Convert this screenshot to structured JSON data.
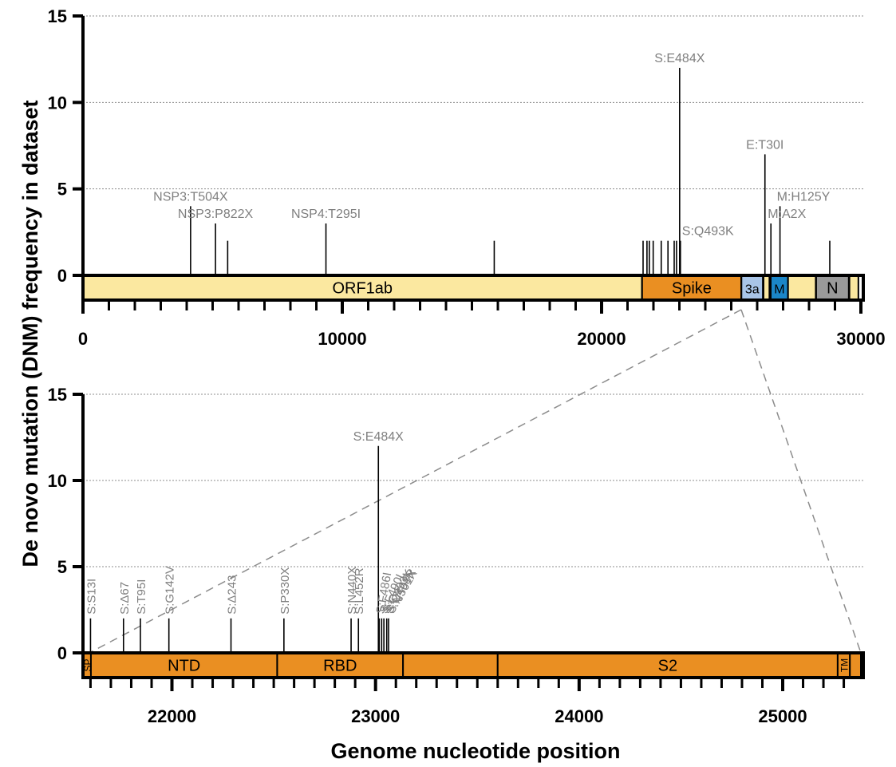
{
  "colors": {
    "orf1ab": "#fbe8a0",
    "spike": "#ea8f22",
    "orf3a": "#a9c5e8",
    "membrane": "#1b86c8",
    "nucleocapsid": "#9a9a9a",
    "other_gene": "#fbe8a0",
    "label_gray": "#7f7f7f",
    "grid": "#8c8c8c",
    "axis": "#000000"
  },
  "chart_data": {
    "y_axis_title": "De novo mutation (DNM) frequency in dataset",
    "x_axis_title": "Genome nucleotide position",
    "panels": [
      {
        "type": "bar",
        "name": "genome",
        "xlim": [
          0,
          30000
        ],
        "ylim": [
          0,
          15
        ],
        "yticks": [
          0,
          5,
          10,
          15
        ],
        "xticks": [
          0,
          10000,
          20000,
          30000
        ],
        "xtick_labels": [
          "0",
          "10000",
          "20000",
          "30000"
        ],
        "minor_xtick_step": 1000,
        "grid": "horizontal",
        "genes": [
          {
            "name": "ORF1ab",
            "start": 0,
            "end": 21555,
            "color_key": "orf1ab"
          },
          {
            "name": "Spike",
            "start": 21563,
            "end": 25384,
            "color_key": "spike"
          },
          {
            "name": "3a",
            "start": 25393,
            "end": 26220,
            "color_key": "orf3a"
          },
          {
            "name": "",
            "start": 26245,
            "end": 26472,
            "color_key": "other_gene"
          },
          {
            "name": "M",
            "start": 26523,
            "end": 27191,
            "color_key": "membrane"
          },
          {
            "name": "",
            "start": 27191,
            "end": 28259,
            "color_key": "other_gene"
          },
          {
            "name": "N",
            "start": 28274,
            "end": 29533,
            "color_key": "nucleocapsid"
          },
          {
            "name": "",
            "start": 29558,
            "end": 29903,
            "color_key": "other_gene"
          }
        ],
        "mutations": [
          {
            "x": 4150,
            "y": 4,
            "label": "NSP3:T504X"
          },
          {
            "x": 5110,
            "y": 3,
            "label": "NSP3:P822X"
          },
          {
            "x": 5580,
            "y": 2,
            "label": ""
          },
          {
            "x": 9370,
            "y": 3,
            "label": "NSP4:T295I"
          },
          {
            "x": 15860,
            "y": 2,
            "label": ""
          },
          {
            "x": 21600,
            "y": 2,
            "label": ""
          },
          {
            "x": 21750,
            "y": 2,
            "label": ""
          },
          {
            "x": 21840,
            "y": 2,
            "label": ""
          },
          {
            "x": 21990,
            "y": 2,
            "label": ""
          },
          {
            "x": 22300,
            "y": 2,
            "label": ""
          },
          {
            "x": 22560,
            "y": 2,
            "label": ""
          },
          {
            "x": 22800,
            "y": 2,
            "label": ""
          },
          {
            "x": 22890,
            "y": 2,
            "label": ""
          },
          {
            "x": 23010,
            "y": 12,
            "label": "S:E484X"
          },
          {
            "x": 23040,
            "y": 2,
            "label": "S:Q493K"
          },
          {
            "x": 26300,
            "y": 7,
            "label": "E:T30I"
          },
          {
            "x": 26530,
            "y": 3,
            "label": "M:A2X"
          },
          {
            "x": 26880,
            "y": 4,
            "label": "M:H125Y"
          },
          {
            "x": 28800,
            "y": 2,
            "label": ""
          }
        ]
      },
      {
        "type": "bar",
        "name": "spike",
        "xlim": [
          21563,
          25384
        ],
        "ylim": [
          0,
          15
        ],
        "yticks": [
          0,
          5,
          10,
          15
        ],
        "xticks": [
          22000,
          23000,
          24000,
          25000
        ],
        "xtick_labels": [
          "22000",
          "23000",
          "24000",
          "25000"
        ],
        "minor_xtick_step": 100,
        "grid": "horizontal",
        "domains": [
          {
            "name": "SP",
            "start": 21563,
            "end": 21602,
            "vertical": true
          },
          {
            "name": "NTD",
            "start": 21602,
            "end": 22517,
            "vertical": false
          },
          {
            "name": "RBD",
            "start": 22517,
            "end": 23135,
            "vertical": false
          },
          {
            "name": "",
            "start": 23135,
            "end": 23600,
            "vertical": false
          },
          {
            "name": "S2",
            "start": 23600,
            "end": 25270,
            "vertical": false
          },
          {
            "name": "TM",
            "start": 25270,
            "end": 25330,
            "vertical": true
          },
          {
            "name": "",
            "start": 25330,
            "end": 25384,
            "vertical": false
          }
        ],
        "mutations": [
          {
            "x": 21600,
            "y": 2,
            "label": "S:S13I",
            "angle": -90
          },
          {
            "x": 21762,
            "y": 2,
            "label": "S:Δ67",
            "angle": -90
          },
          {
            "x": 21845,
            "y": 2,
            "label": "S:T95I",
            "angle": -90
          },
          {
            "x": 21985,
            "y": 2,
            "label": "S:G142V",
            "angle": -90
          },
          {
            "x": 22290,
            "y": 2,
            "label": "S:Δ243",
            "angle": -90
          },
          {
            "x": 22550,
            "y": 2,
            "label": "S:P330X",
            "angle": -90
          },
          {
            "x": 22880,
            "y": 2,
            "label": "S:N440X",
            "angle": -90
          },
          {
            "x": 22916,
            "y": 2,
            "label": "S:L452R",
            "angle": -90
          },
          {
            "x": 23014,
            "y": 12,
            "label": "S:E484X",
            "angle": 0
          },
          {
            "x": 23018,
            "y": 2,
            "label": "S:F486I",
            "angle": -80
          },
          {
            "x": 23030,
            "y": 2,
            "label": "S:F490L",
            "angle": -65
          },
          {
            "x": 23041,
            "y": 2,
            "label": "S:Q493K",
            "angle": -60
          },
          {
            "x": 23055,
            "y": 2,
            "label": "S:Q498R",
            "angle": -60
          },
          {
            "x": 23064,
            "y": 2,
            "label": "S:N501X",
            "angle": -60
          }
        ]
      }
    ]
  }
}
